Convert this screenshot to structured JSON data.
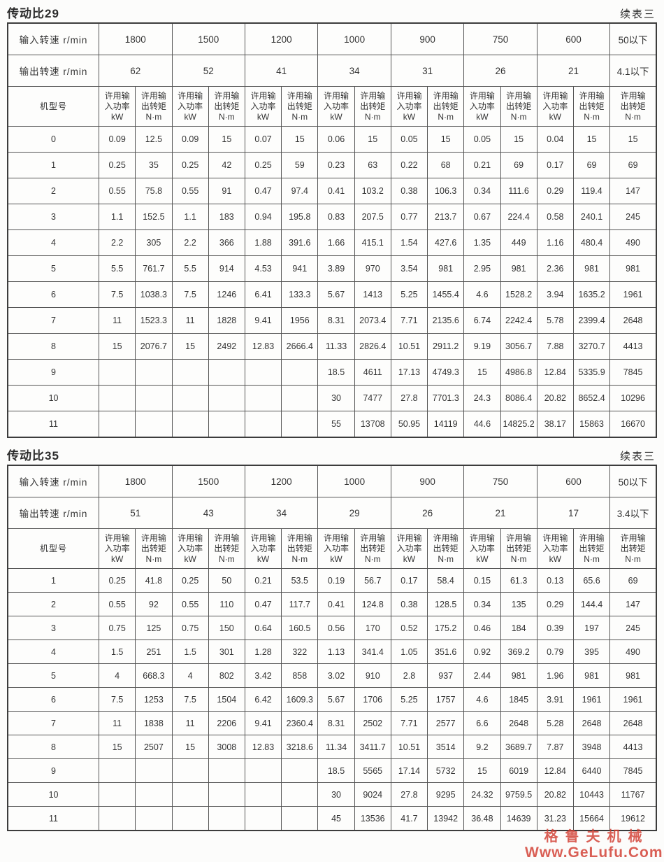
{
  "watermark": {
    "company": "格鲁夫机械",
    "url": "Www.GeLufu.Com",
    "color": "#d23c30"
  },
  "tables": [
    {
      "title": "传动比29",
      "continued_note": "续表三",
      "input_speed_label": "输入转速 r/min",
      "output_speed_label": "输出转速 r/min",
      "model_label": "机型号",
      "power_header": "许用输入功率\nkW",
      "torque_header": "许用输出转矩\nN·m",
      "input_speeds": [
        "1800",
        "1500",
        "1200",
        "1000",
        "900",
        "750",
        "600",
        "50以下"
      ],
      "output_speeds": [
        "62",
        "52",
        "41",
        "34",
        "31",
        "26",
        "21",
        "4.1以下"
      ],
      "rows": [
        {
          "model": "0",
          "values": [
            "0.09",
            "12.5",
            "0.09",
            "15",
            "0.07",
            "15",
            "0.06",
            "15",
            "0.05",
            "15",
            "0.05",
            "15",
            "0.04",
            "15",
            "15"
          ]
        },
        {
          "model": "1",
          "values": [
            "0.25",
            "35",
            "0.25",
            "42",
            "0.25",
            "59",
            "0.23",
            "63",
            "0.22",
            "68",
            "0.21",
            "69",
            "0.17",
            "69",
            "69"
          ]
        },
        {
          "model": "2",
          "values": [
            "0.55",
            "75.8",
            "0.55",
            "91",
            "0.47",
            "97.4",
            "0.41",
            "103.2",
            "0.38",
            "106.3",
            "0.34",
            "111.6",
            "0.29",
            "119.4",
            "147"
          ]
        },
        {
          "model": "3",
          "values": [
            "1.1",
            "152.5",
            "1.1",
            "183",
            "0.94",
            "195.8",
            "0.83",
            "207.5",
            "0.77",
            "213.7",
            "0.67",
            "224.4",
            "0.58",
            "240.1",
            "245"
          ]
        },
        {
          "model": "4",
          "values": [
            "2.2",
            "305",
            "2.2",
            "366",
            "1.88",
            "391.6",
            "1.66",
            "415.1",
            "1.54",
            "427.6",
            "1.35",
            "449",
            "1.16",
            "480.4",
            "490"
          ]
        },
        {
          "model": "5",
          "values": [
            "5.5",
            "761.7",
            "5.5",
            "914",
            "4.53",
            "941",
            "3.89",
            "970",
            "3.54",
            "981",
            "2.95",
            "981",
            "2.36",
            "981",
            "981"
          ]
        },
        {
          "model": "6",
          "values": [
            "7.5",
            "1038.3",
            "7.5",
            "1246",
            "6.41",
            "133.3",
            "5.67",
            "1413",
            "5.25",
            "1455.4",
            "4.6",
            "1528.2",
            "3.94",
            "1635.2",
            "1961"
          ]
        },
        {
          "model": "7",
          "values": [
            "11",
            "1523.3",
            "11",
            "1828",
            "9.41",
            "1956",
            "8.31",
            "2073.4",
            "7.71",
            "2135.6",
            "6.74",
            "2242.4",
            "5.78",
            "2399.4",
            "2648"
          ]
        },
        {
          "model": "8",
          "values": [
            "15",
            "2076.7",
            "15",
            "2492",
            "12.83",
            "2666.4",
            "11.33",
            "2826.4",
            "10.51",
            "2911.2",
            "9.19",
            "3056.7",
            "7.88",
            "3270.7",
            "4413"
          ]
        },
        {
          "model": "9",
          "values": [
            "",
            "",
            "",
            "",
            "",
            "",
            "18.5",
            "4611",
            "17.13",
            "4749.3",
            "15",
            "4986.8",
            "12.84",
            "5335.9",
            "7845"
          ]
        },
        {
          "model": "10",
          "values": [
            "",
            "",
            "",
            "",
            "",
            "",
            "30",
            "7477",
            "27.8",
            "7701.3",
            "24.3",
            "8086.4",
            "20.82",
            "8652.4",
            "10296"
          ]
        },
        {
          "model": "11",
          "values": [
            "",
            "",
            "",
            "",
            "",
            "",
            "55",
            "13708",
            "50.95",
            "14119",
            "44.6",
            "14825.2",
            "38.17",
            "15863",
            "16670"
          ]
        }
      ]
    },
    {
      "title": "传动比35",
      "continued_note": "续表三",
      "input_speed_label": "输入转速 r/min",
      "output_speed_label": "输出转速 r/min",
      "model_label": "机型号",
      "power_header": "许用输入功率\nkW",
      "torque_header": "许用输出转矩\nN·m",
      "input_speeds": [
        "1800",
        "1500",
        "1200",
        "1000",
        "900",
        "750",
        "600",
        "50以下"
      ],
      "output_speeds": [
        "51",
        "43",
        "34",
        "29",
        "26",
        "21",
        "17",
        "3.4以下"
      ],
      "rows": [
        {
          "model": "1",
          "values": [
            "0.25",
            "41.8",
            "0.25",
            "50",
            "0.21",
            "53.5",
            "0.19",
            "56.7",
            "0.17",
            "58.4",
            "0.15",
            "61.3",
            "0.13",
            "65.6",
            "69"
          ]
        },
        {
          "model": "2",
          "values": [
            "0.55",
            "92",
            "0.55",
            "110",
            "0.47",
            "117.7",
            "0.41",
            "124.8",
            "0.38",
            "128.5",
            "0.34",
            "135",
            "0.29",
            "144.4",
            "147"
          ]
        },
        {
          "model": "3",
          "values": [
            "0.75",
            "125",
            "0.75",
            "150",
            "0.64",
            "160.5",
            "0.56",
            "170",
            "0.52",
            "175.2",
            "0.46",
            "184",
            "0.39",
            "197",
            "245"
          ]
        },
        {
          "model": "4",
          "values": [
            "1.5",
            "251",
            "1.5",
            "301",
            "1.28",
            "322",
            "1.13",
            "341.4",
            "1.05",
            "351.6",
            "0.92",
            "369.2",
            "0.79",
            "395",
            "490"
          ]
        },
        {
          "model": "5",
          "values": [
            "4",
            "668.3",
            "4",
            "802",
            "3.42",
            "858",
            "3.02",
            "910",
            "2.8",
            "937",
            "2.44",
            "981",
            "1.96",
            "981",
            "981"
          ]
        },
        {
          "model": "6",
          "values": [
            "7.5",
            "1253",
            "7.5",
            "1504",
            "6.42",
            "1609.3",
            "5.67",
            "1706",
            "5.25",
            "1757",
            "4.6",
            "1845",
            "3.91",
            "1961",
            "1961"
          ]
        },
        {
          "model": "7",
          "values": [
            "11",
            "1838",
            "11",
            "2206",
            "9.41",
            "2360.4",
            "8.31",
            "2502",
            "7.71",
            "2577",
            "6.6",
            "2648",
            "5.28",
            "2648",
            "2648"
          ]
        },
        {
          "model": "8",
          "values": [
            "15",
            "2507",
            "15",
            "3008",
            "12.83",
            "3218.6",
            "11.34",
            "3411.7",
            "10.51",
            "3514",
            "9.2",
            "3689.7",
            "7.87",
            "3948",
            "4413"
          ]
        },
        {
          "model": "9",
          "values": [
            "",
            "",
            "",
            "",
            "",
            "",
            "18.5",
            "5565",
            "17.14",
            "5732",
            "15",
            "6019",
            "12.84",
            "6440",
            "7845"
          ]
        },
        {
          "model": "10",
          "values": [
            "",
            "",
            "",
            "",
            "",
            "",
            "30",
            "9024",
            "27.8",
            "9295",
            "24.32",
            "9759.5",
            "20.82",
            "10443",
            "11767"
          ]
        },
        {
          "model": "11",
          "values": [
            "",
            "",
            "",
            "",
            "",
            "",
            "45",
            "13536",
            "41.7",
            "13942",
            "36.48",
            "14639",
            "31.23",
            "15664",
            "19612"
          ]
        }
      ]
    }
  ]
}
